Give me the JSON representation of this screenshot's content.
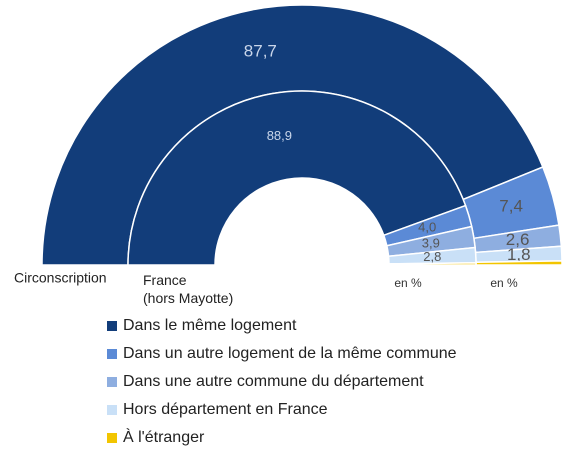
{
  "chart_data": {
    "type": "half-donut",
    "categories": [
      "Dans le même logement",
      "Dans un autre logement de la même commune",
      "Dans une autre commune du département",
      "Hors département en France",
      "À l'étranger"
    ],
    "colors": [
      "#123d7a",
      "#5b8ad6",
      "#8eaee0",
      "#c9e0f7",
      "#f2c500"
    ],
    "unit_label": "en %",
    "series": [
      {
        "name": "Circonscription",
        "values": [
          87.7,
          7.4,
          2.6,
          1.8,
          0.5
        ],
        "value_labels": [
          "87,7",
          "7,4",
          "2,6",
          "1,8",
          null
        ]
      },
      {
        "name": "France (hors Mayotte)",
        "values": [
          88.9,
          4.0,
          3.9,
          2.8,
          0.4
        ],
        "value_labels": [
          "88,9",
          "4,0",
          "3,9",
          "2,8",
          null
        ]
      }
    ]
  }
}
